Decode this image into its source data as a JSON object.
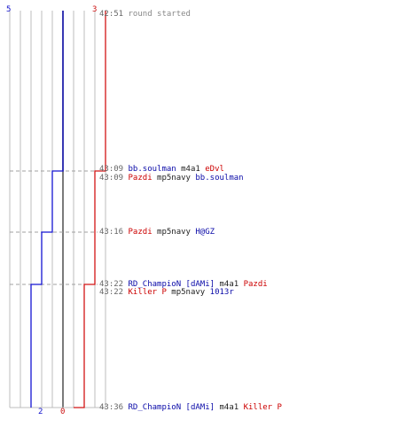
{
  "colors": {
    "blue": "#1414d2",
    "red": "#d21414",
    "grid": "#bcbcbc",
    "grid_center": "#7a7a7a",
    "dashed": "#a0a0a0"
  },
  "scores": {
    "blue_start": "5",
    "red_start": "3",
    "blue_end": "2",
    "red_end": "0"
  },
  "chart_data": {
    "type": "line",
    "x": [
      "42:51",
      "43:09",
      "43:16",
      "43:22",
      "43:36"
    ],
    "series": [
      {
        "values": [
          5,
          4,
          3,
          2,
          2
        ]
      },
      {
        "values": [
          3,
          2,
          2,
          1,
          0
        ]
      }
    ],
    "ylim": [
      0,
      10
    ]
  },
  "events": [
    {
      "time": "42:51",
      "text": "round started"
    },
    {
      "time": "43:09",
      "killer": "bb.soulman",
      "killer_team": "blue",
      "weapon": "m4a1",
      "victim": "eDvl",
      "victim_team": "red"
    },
    {
      "time": "43:09",
      "killer": "Pazdi",
      "killer_team": "red",
      "weapon": "mp5navy",
      "victim": "bb.soulman",
      "victim_team": "blue"
    },
    {
      "time": "43:16",
      "killer": "Pazdi",
      "killer_team": "red",
      "weapon": "mp5navy",
      "victim": "H@GZ",
      "victim_team": "blue"
    },
    {
      "time": "43:22",
      "killer": "RD_ChampioN [dAMi]",
      "killer_team": "blue",
      "weapon": "m4a1",
      "victim": "Pazdi",
      "victim_team": "red"
    },
    {
      "time": "43:22",
      "killer": "Killer P",
      "killer_team": "red",
      "weapon": "mp5navy",
      "victim": "1013r",
      "victim_team": "blue"
    },
    {
      "time": "43:36",
      "killer": "RD_ChampioN [dAMi]",
      "killer_team": "blue",
      "weapon": "m4a1",
      "victim": "Killer P",
      "victim_team": "red"
    }
  ]
}
